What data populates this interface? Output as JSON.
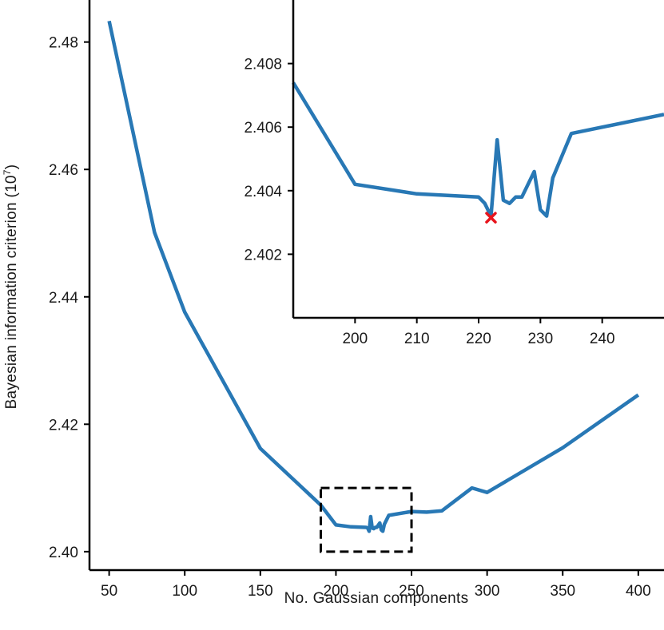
{
  "colors": {
    "line": "#2878b5",
    "marker": "#e8141c",
    "axis": "#000000",
    "zoom_box": "#000000"
  },
  "chart_data": [
    {
      "type": "line",
      "panel": "main",
      "xlabel": "No. Gaussian components",
      "ylabel": "Bayesian information criterion (10",
      "ylabel_exponent": "7",
      "ylabel_close": ")",
      "xlim": [
        37,
        417
      ],
      "ylim": [
        2.3971,
        2.4866
      ],
      "xticks": [
        50,
        100,
        150,
        200,
        250,
        300,
        350,
        400
      ],
      "xtick_labels": [
        "50",
        "100",
        "150",
        "200",
        "250",
        "300",
        "350",
        "400"
      ],
      "yticks": [
        2.4,
        2.42,
        2.44,
        2.46,
        2.48
      ],
      "ytick_labels": [
        "2.40",
        "2.42",
        "2.44",
        "2.46",
        "2.48"
      ],
      "grid": false,
      "legend": "none",
      "zoom_box": {
        "x": [
          190,
          250
        ],
        "y": [
          2.4,
          2.41
        ]
      },
      "series": [
        {
          "x": [
            50,
            80,
            100,
            150,
            190,
            200,
            210,
            220,
            221,
            222,
            223,
            224,
            225,
            226,
            227,
            229,
            230,
            231,
            232,
            235,
            250,
            260,
            270,
            290,
            300,
            350,
            400
          ],
          "y": [
            2.4833,
            2.4501,
            2.4376,
            2.4162,
            2.4073,
            2.4042,
            2.4039,
            2.4038,
            2.4037,
            2.4032,
            2.4055,
            2.4037,
            2.4036,
            2.4038,
            2.4038,
            2.4045,
            2.4034,
            2.4032,
            2.4043,
            2.4057,
            2.4063,
            2.4062,
            2.4064,
            2.41,
            2.4093,
            2.4163,
            2.4246
          ]
        }
      ]
    },
    {
      "type": "line",
      "panel": "inset",
      "xlim": [
        190,
        250
      ],
      "ylim": [
        2.4,
        2.41
      ],
      "xticks": [
        200,
        210,
        220,
        230,
        240
      ],
      "xtick_labels": [
        "200",
        "210",
        "220",
        "230",
        "240"
      ],
      "yticks": [
        2.402,
        2.404,
        2.406,
        2.408
      ],
      "ytick_labels": [
        "2.402",
        "2.404",
        "2.406",
        "2.408"
      ],
      "grid": false,
      "legend": "none",
      "minimum_marker": {
        "x": 222,
        "y": 2.40315
      },
      "series": [
        {
          "x": [
            190,
            200,
            210,
            220,
            221,
            222,
            223,
            224,
            225,
            226,
            227,
            229,
            230,
            231,
            232,
            235,
            250
          ],
          "y": [
            2.4074,
            2.4042,
            2.4039,
            2.4038,
            2.4036,
            2.4032,
            2.4056,
            2.4037,
            2.4036,
            2.4038,
            2.4038,
            2.4046,
            2.4034,
            2.4032,
            2.4044,
            2.4058,
            2.4064
          ]
        }
      ]
    }
  ]
}
